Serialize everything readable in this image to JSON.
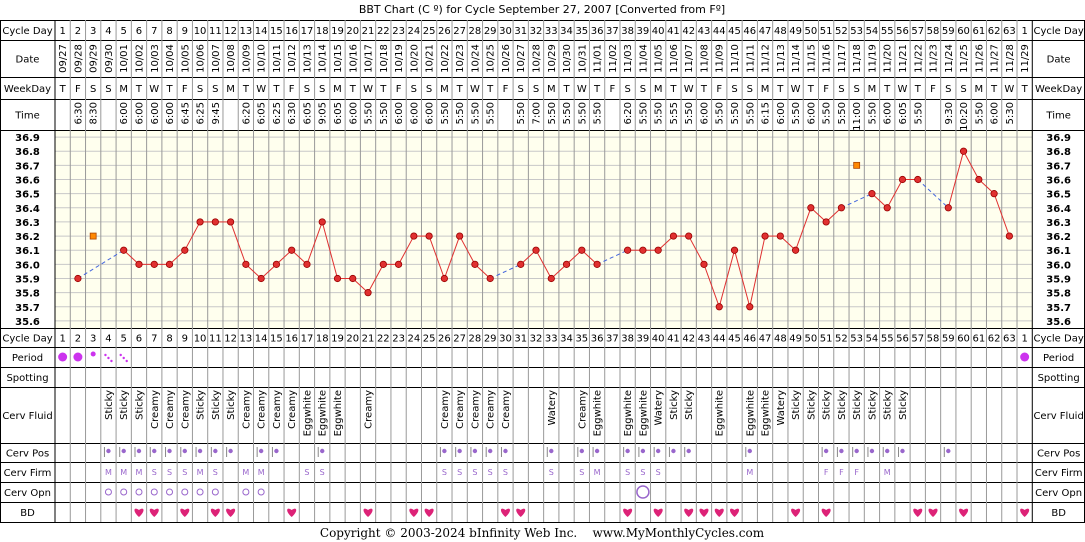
{
  "title": "BBT Chart (C º) for Cycle September 27, 2007  [Converted from Fº]",
  "footer": "Copyright © 2003-2024 bInfinity Web Inc.    www.MyMonthlyCycles.com",
  "row_labels": {
    "cycle_day": "Cycle Day",
    "date": "Date",
    "weekday": "WeekDay",
    "time": "Time",
    "period": "Period",
    "spotting": "Spotting",
    "cerv_fluid": "Cerv Fluid",
    "cerv_pos": "Cerv Pos",
    "cerv_firm": "Cerv Firm",
    "cerv_opn": "Cerv Opn",
    "bd": "BD"
  },
  "colors": {
    "line": "#e03030",
    "dot": "#e03030",
    "dashed": "#4466dd",
    "marker": "#ff8800",
    "period": "#cc33ee",
    "heart": "#dd2277",
    "pos_dot": "#9966cc",
    "firm_text": "#9966cc",
    "grid": "#c8c8c8",
    "plot_bg": "#ffffee"
  },
  "chart_data": {
    "type": "line",
    "ylim": [
      35.55,
      36.95
    ],
    "y_ticks": [
      "36.9",
      "36.8",
      "36.7",
      "36.6",
      "36.5",
      "36.4",
      "36.3",
      "36.2",
      "36.1",
      "36.0",
      "35.9",
      "35.8",
      "35.7",
      "35.6"
    ],
    "cycle_days": [
      "1",
      "2",
      "3",
      "4",
      "5",
      "6",
      "7",
      "8",
      "9",
      "10",
      "11",
      "12",
      "13",
      "14",
      "15",
      "16",
      "17",
      "18",
      "19",
      "20",
      "21",
      "22",
      "23",
      "24",
      "25",
      "26",
      "27",
      "28",
      "29",
      "30",
      "31",
      "32",
      "33",
      "34",
      "35",
      "36",
      "37",
      "38",
      "39",
      "40",
      "41",
      "42",
      "43",
      "44",
      "45",
      "46",
      "47",
      "48",
      "49",
      "50",
      "51",
      "52",
      "53",
      "54",
      "55",
      "56",
      "57",
      "58",
      "59",
      "60",
      "61",
      "62",
      "63",
      "1"
    ],
    "dates": [
      "09/27",
      "09/28",
      "09/29",
      "09/30",
      "10/01",
      "10/02",
      "10/03",
      "10/04",
      "10/05",
      "10/06",
      "10/07",
      "10/08",
      "10/09",
      "10/10",
      "10/11",
      "10/12",
      "10/13",
      "10/14",
      "10/15",
      "10/16",
      "10/17",
      "10/18",
      "10/19",
      "10/20",
      "10/21",
      "10/22",
      "10/23",
      "10/24",
      "10/25",
      "10/26",
      "10/27",
      "10/28",
      "10/29",
      "10/30",
      "10/31",
      "11/01",
      "11/02",
      "11/03",
      "11/04",
      "11/05",
      "11/06",
      "11/07",
      "11/08",
      "11/09",
      "11/10",
      "11/11",
      "11/12",
      "11/13",
      "11/14",
      "11/15",
      "11/16",
      "11/17",
      "11/18",
      "11/19",
      "11/20",
      "11/21",
      "11/22",
      "11/23",
      "11/24",
      "11/25",
      "11/26",
      "11/27",
      "11/28",
      "11/29"
    ],
    "weekdays": [
      "T",
      "F",
      "S",
      "S",
      "M",
      "T",
      "W",
      "T",
      "F",
      "S",
      "S",
      "M",
      "T",
      "W",
      "T",
      "F",
      "S",
      "S",
      "M",
      "T",
      "W",
      "T",
      "F",
      "S",
      "S",
      "M",
      "T",
      "W",
      "T",
      "F",
      "S",
      "S",
      "M",
      "T",
      "W",
      "T",
      "F",
      "S",
      "S",
      "M",
      "T",
      "W",
      "T",
      "F",
      "S",
      "S",
      "M",
      "T",
      "W",
      "T",
      "F",
      "S",
      "S",
      "M",
      "T",
      "W",
      "T",
      "F",
      "S",
      "S",
      "M",
      "T",
      "W",
      "T"
    ],
    "times": [
      "",
      "6:30",
      "8:30",
      "",
      "6:00",
      "6:00",
      "6:00",
      "6:00",
      "6:45",
      "6:25",
      "9:45",
      "",
      "6:20",
      "6:05",
      "6:25",
      "6:30",
      "6:05",
      "9:05",
      "6:05",
      "6:00",
      "5:50",
      "5:50",
      "6:00",
      "6:00",
      "6:00",
      "5:50",
      "5:50",
      "5:50",
      "5:50",
      "",
      "5:50",
      "7:00",
      "5:50",
      "5:50",
      "5:50",
      "5:50",
      "",
      "6:20",
      "5:50",
      "5:50",
      "5:55",
      "5:50",
      "6:00",
      "5:50",
      "5:50",
      "5:50",
      "6:15",
      "6:00",
      "5:50",
      "6:00",
      "5:50",
      "5:50",
      "11:00",
      "5:50",
      "6:00",
      "6:05",
      "5:50",
      "",
      "9:30",
      "10:20",
      "5:50",
      "6:00",
      "5:30",
      ""
    ],
    "temps": [
      null,
      35.9,
      null,
      null,
      36.1,
      36.0,
      36.0,
      36.0,
      36.1,
      36.3,
      36.3,
      36.3,
      36.0,
      35.9,
      36.0,
      36.1,
      36.0,
      36.3,
      35.9,
      35.9,
      35.8,
      36.0,
      36.0,
      36.2,
      36.2,
      35.9,
      36.2,
      36.0,
      35.9,
      null,
      36.0,
      36.1,
      35.9,
      36.0,
      36.1,
      36.0,
      null,
      36.1,
      36.1,
      36.1,
      36.2,
      36.2,
      36.0,
      35.7,
      36.1,
      35.7,
      36.2,
      36.2,
      36.1,
      36.4,
      36.3,
      36.4,
      null,
      36.5,
      36.4,
      36.6,
      36.6,
      null,
      36.4,
      36.8,
      36.6,
      36.5,
      36.2,
      null
    ],
    "excluded": [
      {
        "day_index": 2,
        "temp": 36.2
      },
      {
        "day_index": 52,
        "temp": 36.7
      }
    ],
    "period": [
      "big",
      "big",
      "small",
      "spot",
      "spot",
      "",
      "",
      "",
      "",
      "",
      "",
      "",
      "",
      "",
      "",
      "",
      "",
      "",
      "",
      "",
      "",
      "",
      "",
      "",
      "",
      "",
      "",
      "",
      "",
      "",
      "",
      "",
      "",
      "",
      "",
      "",
      "",
      "",
      "",
      "",
      "",
      "",
      "",
      "",
      "",
      "",
      "",
      "",
      "",
      "",
      "",
      "",
      "",
      "",
      "",
      "",
      "",
      "",
      "",
      "",
      "",
      "",
      "",
      "big"
    ],
    "cerv_fluid": [
      "",
      "",
      "",
      "Sticky",
      "Sticky",
      "Sticky",
      "Creamy",
      "Creamy",
      "Creamy",
      "Sticky",
      "Sticky",
      "Sticky",
      "Creamy",
      "Creamy",
      "Creamy",
      "Creamy",
      "Eggwhite",
      "Eggwhite",
      "Eggwhite",
      "",
      "Creamy",
      "",
      "",
      "",
      "",
      "Creamy",
      "Creamy",
      "Creamy",
      "Creamy",
      "Creamy",
      "",
      "",
      "Watery",
      "",
      "Creamy",
      "Eggwhite",
      "",
      "Eggwhite",
      "Eggwhite",
      "Watery",
      "Sticky",
      "Sticky",
      "",
      "Eggwhite",
      "",
      "Eggwhite",
      "Eggwhite",
      "Watery",
      "Sticky",
      "Sticky",
      "Sticky",
      "Sticky",
      "Sticky",
      "Sticky",
      "Sticky",
      "Sticky",
      "",
      "",
      "",
      "",
      "",
      "",
      "",
      ""
    ],
    "cerv_pos": [
      0,
      0,
      0,
      1,
      1,
      1,
      1,
      1,
      1,
      1,
      1,
      1,
      0,
      1,
      1,
      0,
      0,
      1,
      0,
      0,
      0,
      0,
      0,
      0,
      0,
      1,
      1,
      1,
      1,
      1,
      0,
      0,
      1,
      0,
      1,
      1,
      0,
      1,
      1,
      1,
      1,
      1,
      0,
      0,
      0,
      1,
      0,
      0,
      0,
      0,
      1,
      1,
      1,
      1,
      1,
      1,
      0,
      0,
      1,
      0,
      0,
      0,
      0,
      0
    ],
    "cerv_firm": [
      "",
      "",
      "",
      "M",
      "M",
      "M",
      "S",
      "S",
      "S",
      "M",
      "S",
      "",
      "M",
      "M",
      "",
      "",
      "S",
      "S",
      "",
      "",
      "",
      "",
      "",
      "",
      "",
      "S",
      "S",
      "S",
      "S",
      "S",
      "",
      "",
      "S",
      "",
      "S",
      "M",
      "",
      "S",
      "S",
      "S",
      "",
      "",
      "",
      "",
      "",
      "M",
      "",
      "",
      "",
      "",
      "F",
      "F",
      "F",
      "",
      "M",
      "",
      "",
      "",
      "",
      "",
      "",
      "",
      "",
      ""
    ],
    "cerv_opn": [
      "",
      "",
      "",
      "o",
      "o",
      "o",
      "o",
      "o",
      "o",
      "o",
      "o",
      "",
      "o",
      "o",
      "",
      "",
      "",
      "",
      "",
      "",
      "",
      "",
      "",
      "",
      "",
      "",
      "",
      "",
      "",
      "",
      "",
      "",
      "",
      "",
      "",
      "",
      "",
      "",
      "O",
      "",
      "",
      "",
      "",
      "",
      "",
      "",
      "",
      "",
      "",
      "",
      "",
      "",
      "",
      "",
      "",
      "",
      "",
      "",
      "",
      "",
      "",
      "",
      "",
      ""
    ],
    "bd": [
      0,
      0,
      0,
      0,
      0,
      1,
      1,
      0,
      1,
      0,
      1,
      1,
      0,
      0,
      0,
      1,
      0,
      0,
      0,
      0,
      1,
      0,
      0,
      1,
      1,
      0,
      0,
      0,
      0,
      1,
      1,
      0,
      0,
      0,
      0,
      0,
      0,
      1,
      0,
      1,
      0,
      1,
      1,
      1,
      1,
      0,
      0,
      0,
      1,
      0,
      1,
      0,
      0,
      0,
      0,
      0,
      1,
      1,
      0,
      1,
      0,
      0,
      0,
      1
    ]
  }
}
